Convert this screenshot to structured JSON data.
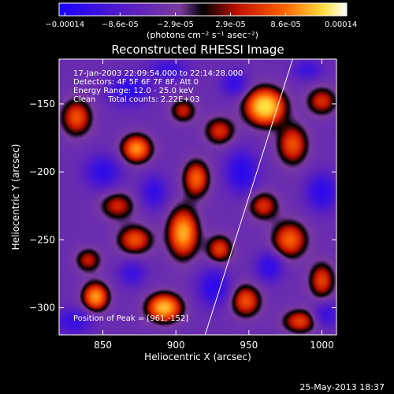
{
  "chart_data": {
    "type": "heatmap",
    "title": "Reconstructed RHESSI Image",
    "xlabel": "Heliocentric X (arcsec)",
    "ylabel": "Heliocentric Y (arcsec)",
    "xlim": [
      820,
      1010
    ],
    "ylim": [
      -320,
      -117
    ],
    "x_ticks": [
      850,
      900,
      950,
      1000
    ],
    "y_ticks": [
      -150,
      -200,
      -250,
      -300
    ],
    "colorbar": {
      "ticks": [
        "-0.00014",
        "-8.6e-05",
        "-2.9e-05",
        "2.9e-05",
        "8.6e-05",
        "0.00014"
      ],
      "unit_label": "(photons cm⁻² s⁻¹ asec⁻²)",
      "range": [
        -0.00014,
        0.00014
      ],
      "colors": [
        "#1a00ff",
        "#5a20c0",
        "#7a3aa0",
        "#000000",
        "#c01000",
        "#ff6000",
        "#ffe040",
        "#ffffff"
      ]
    },
    "annotations": [
      "17-Jan-2003 22:09:54.000 to 22:14:28.000",
      "Detectors: 4F 5F 6F 7F 8F, Att 0",
      "Energy Range: 12.0 - 25.0 keV",
      "Clean     Total counts: 2.22E+03"
    ],
    "peak_label": "Position of Peak = [961,-152]",
    "peak": {
      "x": 961,
      "y": -152
    },
    "limb_line": [
      {
        "x": 920,
        "y": -320
      },
      {
        "x": 980,
        "y": -117
      }
    ],
    "sources": [
      {
        "x": 961,
        "y": -152,
        "value": 1.0,
        "sx": 9,
        "sy": 9
      },
      {
        "x": 892,
        "y": -300,
        "value": 0.85,
        "sx": 8,
        "sy": 7
      },
      {
        "x": 905,
        "y": -245,
        "value": 0.8,
        "sx": 7,
        "sy": 12
      },
      {
        "x": 845,
        "y": -292,
        "value": 0.75,
        "sx": 6,
        "sy": 7
      },
      {
        "x": 873,
        "y": -183,
        "value": 0.72,
        "sx": 7,
        "sy": 7
      },
      {
        "x": 914,
        "y": -205,
        "value": 0.6,
        "sx": 6,
        "sy": 9
      },
      {
        "x": 872,
        "y": -250,
        "value": 0.55,
        "sx": 8,
        "sy": 7
      },
      {
        "x": 978,
        "y": -250,
        "value": 0.6,
        "sx": 8,
        "sy": 9
      },
      {
        "x": 980,
        "y": -180,
        "value": 0.55,
        "sx": 7,
        "sy": 10
      },
      {
        "x": 1000,
        "y": -280,
        "value": 0.5,
        "sx": 6,
        "sy": 9
      },
      {
        "x": 930,
        "y": -170,
        "value": 0.45,
        "sx": 7,
        "sy": 7
      },
      {
        "x": 860,
        "y": -225,
        "value": 0.42,
        "sx": 8,
        "sy": 7
      },
      {
        "x": 948,
        "y": -295,
        "value": 0.55,
        "sx": 7,
        "sy": 8
      },
      {
        "x": 1000,
        "y": -148,
        "value": 0.45,
        "sx": 7,
        "sy": 7
      },
      {
        "x": 930,
        "y": -257,
        "value": 0.5,
        "sx": 6,
        "sy": 7
      },
      {
        "x": 832,
        "y": -160,
        "value": 0.55,
        "sx": 7,
        "sy": 9
      },
      {
        "x": 960,
        "y": -225,
        "value": 0.45,
        "sx": 7,
        "sy": 7
      },
      {
        "x": 840,
        "y": -265,
        "value": 0.4,
        "sx": 6,
        "sy": 6
      },
      {
        "x": 985,
        "y": -310,
        "value": 0.5,
        "sx": 8,
        "sy": 6
      },
      {
        "x": 905,
        "y": -155,
        "value": 0.4,
        "sx": 6,
        "sy": 6
      },
      {
        "x": 850,
        "y": -200,
        "value": -0.5,
        "sx": 8,
        "sy": 8
      },
      {
        "x": 868,
        "y": -140,
        "value": -0.55,
        "sx": 9,
        "sy": 7
      },
      {
        "x": 945,
        "y": -200,
        "value": -0.6,
        "sx": 7,
        "sy": 10
      },
      {
        "x": 926,
        "y": -285,
        "value": -0.55,
        "sx": 7,
        "sy": 9
      },
      {
        "x": 1000,
        "y": -215,
        "value": -0.55,
        "sx": 7,
        "sy": 9
      },
      {
        "x": 964,
        "y": -270,
        "value": -0.5,
        "sx": 6,
        "sy": 7
      },
      {
        "x": 885,
        "y": -215,
        "value": -0.45,
        "sx": 6,
        "sy": 8
      },
      {
        "x": 830,
        "y": -310,
        "value": -0.45,
        "sx": 8,
        "sy": 6
      },
      {
        "x": 1003,
        "y": -305,
        "value": -0.4,
        "sx": 6,
        "sy": 6
      },
      {
        "x": 895,
        "y": -125,
        "value": -0.4,
        "sx": 9,
        "sy": 5
      },
      {
        "x": 940,
        "y": -135,
        "value": -0.45,
        "sx": 6,
        "sy": 6
      },
      {
        "x": 870,
        "y": -275,
        "value": -0.4,
        "sx": 6,
        "sy": 6
      },
      {
        "x": 990,
        "y": -125,
        "value": -0.35,
        "sx": 7,
        "sy": 5
      }
    ]
  },
  "footer": {
    "date": "25-May-2013 18:37"
  }
}
